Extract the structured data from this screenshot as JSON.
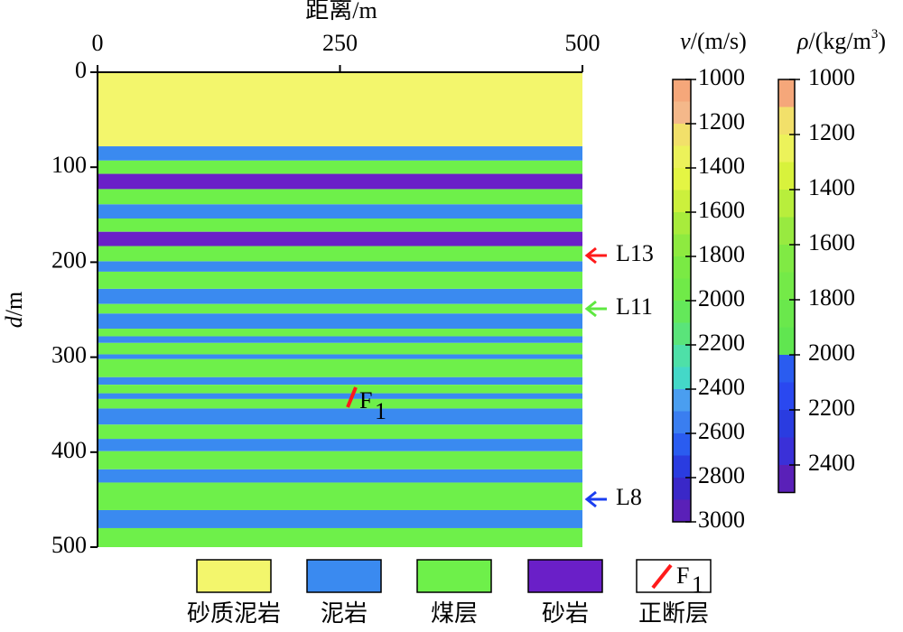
{
  "chart_data": {
    "type": "layers",
    "x_title": "距离/m",
    "y_title_symbol": "d",
    "y_title_unit": "/m",
    "xlim": [
      0,
      500
    ],
    "xticks": [
      0,
      250,
      500
    ],
    "ylim": [
      0,
      500
    ],
    "yticks": [
      0,
      100,
      200,
      300,
      400,
      500
    ],
    "rocks": [
      {
        "name": "砂质泥岩",
        "color": "#f3f66c",
        "layers": [
          [
            0,
            78
          ]
        ]
      },
      {
        "name": "泥岩",
        "color": "#3a8af0",
        "layers": [
          [
            78,
            93
          ],
          [
            139,
            154
          ],
          [
            199,
            210
          ],
          [
            228,
            244
          ],
          [
            254,
            270
          ],
          [
            278,
            285
          ],
          [
            297,
            302
          ],
          [
            321,
            329
          ],
          [
            338,
            344
          ],
          [
            354,
            371
          ],
          [
            386,
            399
          ],
          [
            418,
            432
          ],
          [
            461,
            480
          ]
        ]
      },
      {
        "name": "煤层",
        "color": "#6ef04a",
        "layers": [
          [
            93,
            107
          ],
          [
            123,
            139
          ],
          [
            154,
            168
          ],
          [
            183,
            199
          ],
          [
            210,
            228
          ],
          [
            244,
            254
          ],
          [
            270,
            278
          ],
          [
            285,
            297
          ],
          [
            302,
            321
          ],
          [
            329,
            338
          ],
          [
            344,
            354
          ],
          [
            371,
            386
          ],
          [
            399,
            418
          ],
          [
            432,
            461
          ],
          [
            480,
            500
          ]
        ]
      },
      {
        "name": "砂岩",
        "color": "#6a1fc8",
        "layers": [
          [
            107,
            123
          ],
          [
            168,
            183
          ]
        ]
      }
    ],
    "fault": {
      "name": "正断层",
      "label": "F",
      "sub": "1",
      "color": "#ff1a1a"
    },
    "markers": [
      {
        "label": "L13",
        "color": "#ff1a1a"
      },
      {
        "label": "L11",
        "color": "#5ee840"
      },
      {
        "label": "L8",
        "color": "#1a3ef0"
      }
    ],
    "colorbars": [
      {
        "symbol": "v",
        "unit": "/(m/s)",
        "lim": [
          1000,
          3000
        ],
        "ticks": [
          1000,
          1200,
          1400,
          1600,
          1800,
          2000,
          2200,
          2400,
          2600,
          2800,
          3000
        ],
        "colors": [
          "#f5a77a",
          "#f4b88a",
          "#f2e06a",
          "#ecf25a",
          "#e4f544",
          "#ccf03c",
          "#a8ec3c",
          "#8eea40",
          "#7aea44",
          "#70ea48",
          "#64e85a",
          "#5ae47a",
          "#4ee0a8",
          "#44d8c8",
          "#4a9ef0",
          "#3a7ef0",
          "#2a5cf0",
          "#2a3ce0",
          "#3a28c8",
          "#5a20b8"
        ]
      },
      {
        "symbol": "ρ",
        "unit": "/(kg/m",
        "sup": "3",
        "close": ")",
        "lim": [
          1000,
          2500
        ],
        "ticks": [
          1000,
          1200,
          1400,
          1600,
          1800,
          2000,
          2200,
          2400
        ],
        "colors": [
          "#f5a77a",
          "#f2e06a",
          "#ecf25a",
          "#d8f23c",
          "#b8ee3c",
          "#98ea40",
          "#80ea44",
          "#74ea48",
          "#6ae84c",
          "#60e650",
          "#2a5cf0",
          "#2a48f0",
          "#2a3ce0",
          "#3a30d8",
          "#5a20b8"
        ]
      }
    ]
  }
}
